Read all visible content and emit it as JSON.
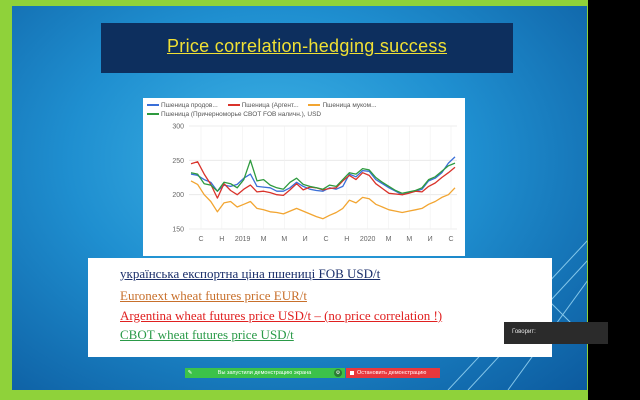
{
  "slide": {
    "title": "Price correlation-hedging success",
    "lines": [
      "українська експортна ціна пшениці FOB USD/t",
      "Euronext wheat futures price EUR/t",
      "Argentina wheat futures price USD/t – (no price correlation !)",
      "CBOT wheat futures price USD/t"
    ]
  },
  "chart_data": {
    "type": "line",
    "legend": [
      "Пшеница продов...",
      "Пшеница (Аргент...",
      "Пшеница муком...",
      "Пшеница (Причерноморье CBOT FOB наличн.), USD"
    ],
    "yticks": [
      "300",
      "250",
      "200",
      "150"
    ],
    "ylim": [
      150,
      300
    ],
    "xticks": [
      "С",
      "Н",
      "2019",
      "М",
      "М",
      "И",
      "С",
      "Н",
      "2020",
      "М",
      "М",
      "И",
      "С"
    ],
    "grid": true,
    "colors": {
      "blue": "#3a6fd8",
      "red": "#d9332b",
      "orange": "#f2a531",
      "green": "#2e9a3e"
    },
    "series": [
      {
        "name": "Пшеница продов...",
        "color": "#3a6fd8",
        "values": [
          230,
          228,
          222,
          218,
          205,
          214,
          212,
          215,
          224,
          230,
          212,
          211,
          210,
          205,
          205,
          210,
          218,
          212,
          208,
          206,
          205,
          210,
          208,
          212,
          230,
          226,
          235,
          234,
          222,
          216,
          210,
          205,
          200,
          203,
          205,
          208,
          220,
          224,
          232,
          246,
          255
        ]
      },
      {
        "name": "Пшеница (Аргент...",
        "color": "#d9332b",
        "values": [
          245,
          248,
          230,
          215,
          195,
          216,
          206,
          200,
          208,
          214,
          204,
          205,
          203,
          200,
          199,
          207,
          216,
          207,
          211,
          210,
          207,
          209,
          210,
          220,
          228,
          222,
          232,
          228,
          216,
          209,
          202,
          201,
          200,
          202,
          205,
          204,
          212,
          217,
          225,
          232,
          240
        ]
      },
      {
        "name": "Пшеница муком...",
        "color": "#f2a531",
        "values": [
          220,
          215,
          200,
          190,
          175,
          188,
          190,
          182,
          186,
          190,
          180,
          178,
          175,
          174,
          172,
          176,
          180,
          176,
          172,
          168,
          165,
          170,
          174,
          180,
          192,
          188,
          196,
          194,
          186,
          182,
          178,
          176,
          174,
          176,
          178,
          180,
          186,
          190,
          196,
          200,
          210
        ]
      },
      {
        "name": "Пшеница (Причерноморье CBOT FOB наличн.), USD",
        "color": "#2e9a3e",
        "values": [
          232,
          230,
          216,
          214,
          205,
          218,
          216,
          210,
          222,
          250,
          220,
          222,
          214,
          210,
          208,
          218,
          224,
          215,
          212,
          210,
          208,
          214,
          212,
          222,
          232,
          230,
          238,
          236,
          225,
          218,
          212,
          206,
          202,
          204,
          206,
          210,
          222,
          226,
          234,
          242,
          246
        ]
      }
    ]
  },
  "overlay": {
    "speaking_label": "Говорит:",
    "share_status": "Вы запустили демонстрацию экрана",
    "stop_label": "Остановить демонстрацию"
  }
}
